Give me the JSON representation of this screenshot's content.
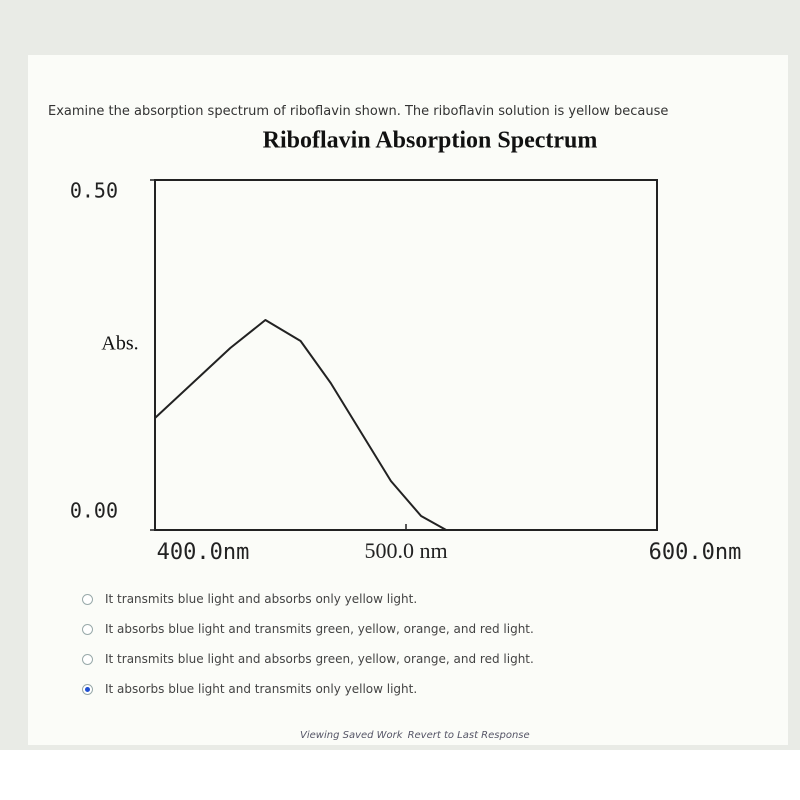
{
  "question": "Examine the absorption spectrum of riboflavin shown. The riboflavin solution is yellow because",
  "chart_data": {
    "type": "line",
    "title": "Riboflavin Absorption Spectrum",
    "y_label": "Abs.",
    "x": [
      400,
      418,
      430,
      444,
      458,
      470,
      482,
      494,
      506,
      516
    ],
    "series": [
      {
        "name": "Riboflavin",
        "color": "#222222",
        "values": [
          0.16,
          0.22,
          0.26,
          0.3,
          0.27,
          0.21,
          0.14,
          0.07,
          0.02,
          0.0
        ]
      }
    ],
    "xlim": [
      400,
      600
    ],
    "ylim": [
      0,
      0.5
    ],
    "xticks": [
      {
        "value": 400,
        "label": "400.0nm"
      },
      {
        "value": 500,
        "label": "500.0 nm"
      },
      {
        "value": 600,
        "label": "600.0nm"
      }
    ],
    "yticks": [
      {
        "value": 0,
        "label": "0.00"
      },
      {
        "value": 0.5,
        "label": "0.50"
      }
    ]
  },
  "options": [
    "It transmits blue light and absorbs only yellow light.",
    "It absorbs blue light and transmits green, yellow, orange, and red light.",
    "It transmits blue light and absorbs green, yellow, orange, and red light.",
    "It absorbs blue light and transmits only yellow light."
  ],
  "selected": 3,
  "footer": [
    "Viewing Saved Work",
    "Revert to Last Response"
  ]
}
